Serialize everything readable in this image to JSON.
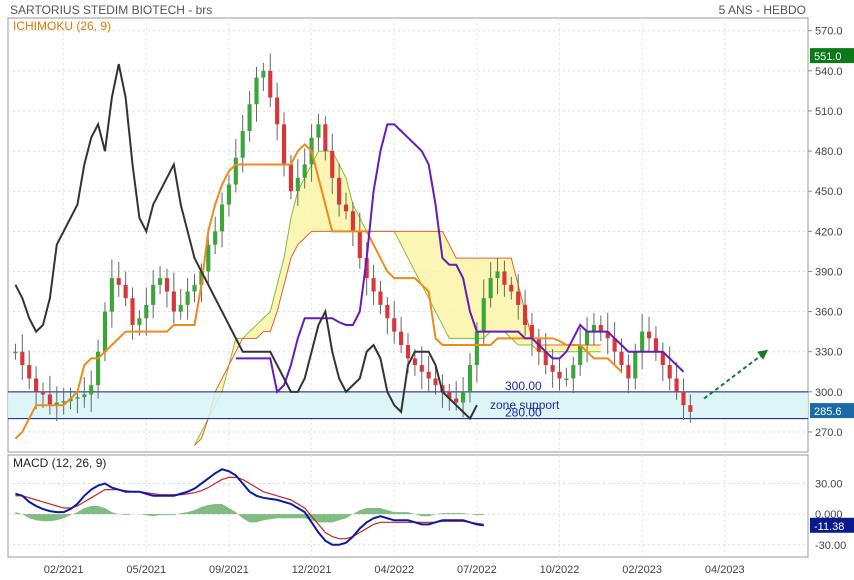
{
  "header": {
    "title": "SARTORIUS STEDIM BIOTECH - brs",
    "period": "5 ANS - HEBDO"
  },
  "chart_data": [
    {
      "type": "candlestick",
      "indicator_label": "ICHIMOKU (26, 9)",
      "ylim": [
        258,
        578
      ],
      "y_ticks": [
        570,
        540,
        510,
        480,
        450,
        420,
        390,
        360,
        330,
        300,
        270
      ],
      "x_tick_labels": [
        "02/2021",
        "05/2021",
        "09/2021",
        "12/2021",
        "04/2022",
        "07/2022",
        "10/2022",
        "02/2023",
        "04/2023"
      ],
      "x_tick_index": [
        7,
        19,
        31,
        43,
        55,
        67,
        79,
        91,
        103
      ],
      "n_slots": 115,
      "last_price": "551.0",
      "current_price": "285.6",
      "zone": {
        "top": 300,
        "bottom": 280,
        "top_label": "300.00",
        "bottom_label": "280.00",
        "label": "zone support"
      },
      "closes": [
        330,
        320,
        310,
        300,
        298,
        290,
        292,
        293,
        295,
        296,
        298,
        305,
        330,
        360,
        385,
        380,
        370,
        350,
        355,
        365,
        380,
        385,
        375,
        360,
        365,
        375,
        380,
        390,
        410,
        420,
        440,
        455,
        475,
        495,
        515,
        535,
        540,
        520,
        500,
        470,
        450,
        460,
        470,
        490,
        500,
        480,
        460,
        440,
        435,
        420,
        400,
        385,
        375,
        365,
        355,
        345,
        335,
        325,
        320,
        315,
        310,
        305,
        300,
        295,
        292,
        300,
        320,
        345,
        370,
        385,
        390,
        380,
        375,
        365,
        350,
        340,
        330,
        320,
        315,
        310,
        310,
        320,
        335,
        345,
        350,
        345,
        340,
        330,
        320,
        310,
        330,
        345,
        340,
        330,
        320,
        310,
        300,
        290,
        285
      ],
      "kijun": [
        265,
        270,
        280,
        290,
        290,
        290,
        290,
        290,
        295,
        300,
        320,
        325,
        325,
        330,
        335,
        340,
        345,
        345,
        345,
        345,
        345,
        345,
        345,
        350,
        350,
        350,
        350,
        380,
        420,
        440,
        455,
        465,
        470,
        470,
        470,
        470,
        470,
        470,
        470,
        470,
        470,
        480,
        485,
        480,
        460,
        440,
        420,
        420,
        420,
        420,
        420,
        420,
        410,
        400,
        390,
        385,
        385,
        385,
        385,
        380,
        375,
        340,
        335,
        335,
        335,
        335,
        335,
        335,
        335,
        335,
        340,
        340,
        340,
        340,
        340,
        340,
        340,
        340,
        340,
        338,
        335,
        335,
        335,
        330,
        325,
        325,
        325,
        320,
        315
      ],
      "tenkan": [
        325,
        325,
        325,
        325,
        325,
        325,
        300,
        305,
        320,
        340,
        355,
        355,
        355,
        355,
        355,
        352,
        350,
        350,
        360,
        400,
        450,
        480,
        500,
        500,
        495,
        490,
        485,
        480,
        470,
        440,
        400,
        395,
        395,
        385,
        360,
        345,
        345,
        345,
        345,
        345,
        345,
        345,
        340,
        340,
        335,
        330,
        325,
        325,
        330,
        340,
        350,
        345,
        345,
        345,
        345,
        340,
        335,
        330,
        330,
        330,
        330,
        330,
        330,
        325,
        320,
        315
      ],
      "chikou": [
        380,
        370,
        355,
        345,
        350,
        370,
        410,
        420,
        430,
        440,
        470,
        490,
        500,
        480,
        520,
        545,
        520,
        470,
        430,
        420,
        440,
        450,
        460,
        470,
        440,
        420,
        400,
        390,
        380,
        370,
        360,
        350,
        340,
        330,
        330,
        330,
        330,
        330,
        320,
        310,
        300,
        300,
        310,
        330,
        350,
        360,
        330,
        310,
        300,
        305,
        310,
        330,
        335,
        325,
        300,
        290,
        285,
        320,
        330,
        330,
        330,
        320,
        300,
        295,
        290,
        285,
        280,
        290
      ],
      "span_a": [
        260,
        270,
        280,
        290,
        300,
        320,
        340,
        340,
        345,
        350,
        355,
        360,
        380,
        400,
        430,
        450,
        460,
        470,
        480,
        480,
        480,
        470,
        460,
        440,
        430,
        420,
        420,
        420,
        420,
        420,
        410,
        400,
        390,
        380,
        370,
        360,
        350,
        340,
        340,
        340,
        340,
        340,
        340,
        345,
        345,
        345,
        340,
        335,
        335,
        335,
        330,
        330,
        330,
        330,
        330,
        330,
        330,
        330,
        330,
        330
      ],
      "span_b": [
        260,
        265,
        280,
        300,
        310,
        320,
        330,
        340,
        340,
        340,
        345,
        345,
        360,
        380,
        400,
        410,
        415,
        420,
        420,
        420,
        420,
        420,
        420,
        420,
        420,
        420,
        420,
        420,
        420,
        420,
        420,
        420,
        420,
        420,
        420,
        420,
        420,
        410,
        400,
        400,
        400,
        400,
        400,
        400,
        400,
        400,
        400,
        380,
        360,
        340,
        335,
        335,
        335,
        335,
        335,
        335,
        335,
        335,
        335,
        335
      ]
    },
    {
      "type": "line",
      "indicator_label": "MACD (12, 26, 9)",
      "ylim": [
        -40,
        55
      ],
      "y_ticks": [
        30,
        0,
        -30
      ],
      "y_tick_labels": [
        "30.00",
        "0.000",
        "-30.00"
      ],
      "macd_badge": "-11.38",
      "series": [
        {
          "values": [
            20,
            18,
            12,
            8,
            5,
            3,
            2,
            2,
            5,
            10,
            18,
            24,
            28,
            30,
            26,
            24,
            22,
            22,
            22,
            20,
            18,
            18,
            18,
            18,
            20,
            22,
            25,
            30,
            35,
            40,
            44,
            42,
            38,
            30,
            22,
            18,
            16,
            15,
            14,
            12,
            10,
            6,
            2,
            -8,
            -18,
            -26,
            -30,
            -30,
            -28,
            -22,
            -14,
            -8,
            -4,
            -2,
            -4,
            -6,
            -6,
            -6,
            -8,
            -10,
            -10,
            -8,
            -6,
            -6,
            -6,
            -6,
            -8,
            -10,
            -11
          ]
        },
        {
          "values": [
            18,
            18,
            16,
            14,
            12,
            10,
            8,
            6,
            6,
            8,
            12,
            16,
            20,
            24,
            24,
            24,
            23,
            22,
            22,
            21,
            20,
            19,
            19,
            19,
            19,
            20,
            21,
            23,
            26,
            30,
            34,
            36,
            36,
            34,
            30,
            26,
            22,
            20,
            18,
            16,
            14,
            10,
            6,
            -2,
            -10,
            -18,
            -22,
            -24,
            -24,
            -22,
            -18,
            -14,
            -10,
            -8,
            -8,
            -8,
            -8,
            -8,
            -8,
            -8,
            -8,
            -8,
            -7,
            -7,
            -7,
            -7,
            -8,
            -9,
            -10
          ]
        }
      ]
    }
  ]
}
